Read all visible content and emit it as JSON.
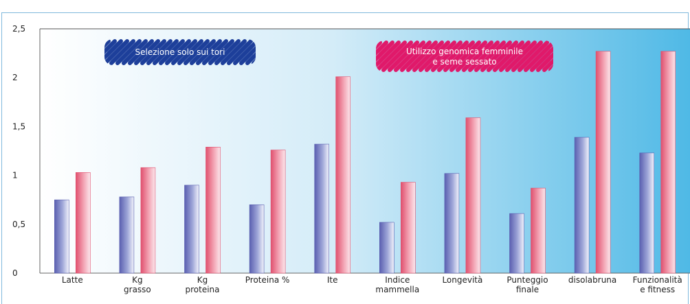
{
  "chart_data": {
    "type": "bar",
    "title": "",
    "xlabel": "",
    "ylabel": "",
    "ylim": [
      0,
      2.5
    ],
    "yticks": [
      "0",
      "0,5",
      "1",
      "1,5",
      "2",
      "2,5"
    ],
    "grid": false,
    "categories": [
      [
        "Latte"
      ],
      [
        "Kg",
        "grasso"
      ],
      [
        "Kg",
        "proteina"
      ],
      [
        "Proteina %"
      ],
      [
        "Ite"
      ],
      [
        "Indice",
        "mammella"
      ],
      [
        "Longevità"
      ],
      [
        "Punteggio",
        "finale"
      ],
      [
        "disolabruna"
      ],
      [
        "Funzionalità",
        "e fitness"
      ]
    ],
    "series": [
      {
        "values": [
          0.75,
          0.78,
          0.9,
          0.7,
          1.32,
          0.52,
          1.02,
          0.61,
          1.39,
          1.23
        ],
        "color": "#5a5fb0"
      },
      {
        "values": [
          1.03,
          1.08,
          1.29,
          1.26,
          2.01,
          0.93,
          1.59,
          0.87,
          2.27,
          2.27
        ],
        "color": "#e0506e"
      }
    ],
    "annotations": [
      {
        "lines": [
          "Selezione solo sui tori"
        ],
        "color": "#1e3f9a",
        "anchor": "upper-left"
      },
      {
        "lines": [
          "Utilizzo genomica femminile",
          "e seme sessato"
        ],
        "color": "#e0196a",
        "anchor": "upper-center"
      }
    ]
  }
}
